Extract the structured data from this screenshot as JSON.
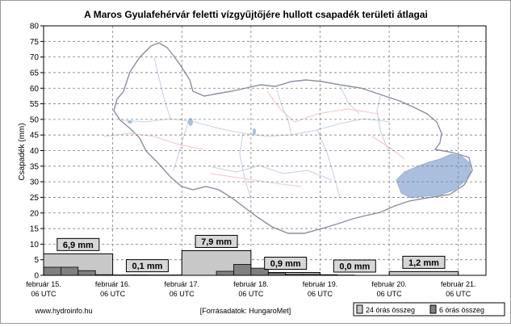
{
  "chart_data": {
    "type": "bar",
    "title": "A Maros Gyulafehérvár feletti vízgyűjtőjére hullott csapadék területi átlagai",
    "ylabel": "Csapadék (mm)",
    "ylim": [
      0,
      80
    ],
    "yticks": [
      0,
      5,
      10,
      15,
      20,
      25,
      30,
      35,
      40,
      45,
      50,
      55,
      60,
      65,
      70,
      75,
      80
    ],
    "xlim": [
      0,
      6.4
    ],
    "xticks": [
      {
        "x": 0,
        "date": "február 15.",
        "time": "06 UTC"
      },
      {
        "x": 1,
        "date": "február 16.",
        "time": "06 UTC"
      },
      {
        "x": 2,
        "date": "február 17.",
        "time": "06 UTC"
      },
      {
        "x": 3,
        "date": "február 18.",
        "time": "06 UTC"
      },
      {
        "x": 4,
        "date": "február 19.",
        "time": "06 UTC"
      },
      {
        "x": 5,
        "date": "február 20.",
        "time": "06 UTC"
      },
      {
        "x": 6,
        "date": "február 21.",
        "time": "06 UTC"
      }
    ],
    "grid": true,
    "daily_totals": [
      {
        "start": 0,
        "value": 6.9,
        "label": "6,9 mm"
      },
      {
        "start": 1,
        "value": 0.1,
        "label": "0,1 mm"
      },
      {
        "start": 2,
        "value": 7.9,
        "label": "7,9 mm"
      },
      {
        "start": 3,
        "value": 0.9,
        "label": "0,9 mm"
      },
      {
        "start": 4,
        "value": 0.0,
        "label": "0,0 mm"
      },
      {
        "start": 5,
        "value": 1.2,
        "label": "1,2 mm"
      }
    ],
    "six_hour_values": [
      2.6,
      2.6,
      1.5,
      0.2,
      0.0,
      0.1,
      0.0,
      0.0,
      0.0,
      0.0,
      1.3,
      3.5,
      2.3,
      0.8,
      0.3,
      0.3,
      0.2,
      0.1,
      0.0,
      0.0,
      0.0,
      0.0,
      0.0,
      0.0,
      0.0,
      0.0,
      0.0,
      0.2,
      1.0
    ],
    "legend": {
      "placement": "bottom-right",
      "items": [
        {
          "label": "24 órás összeg",
          "color": "#c8c8c8"
        },
        {
          "label": "6 órás összeg",
          "color": "#808080"
        }
      ]
    }
  },
  "footer": {
    "website": "www.hydroinfo.hu",
    "source": "[Forrásadatok: HungaroMet]"
  },
  "colors": {
    "daily_fill": "#c8c8c8",
    "six_hour_fill": "#808080",
    "grid": "#7f7f7f",
    "map_lake": "#a9bfdf",
    "map_outline": "#8a8ea0",
    "map_river": "#c9d3e4",
    "map_road": "#efc8c8",
    "label_box": "#d7d7d7"
  }
}
